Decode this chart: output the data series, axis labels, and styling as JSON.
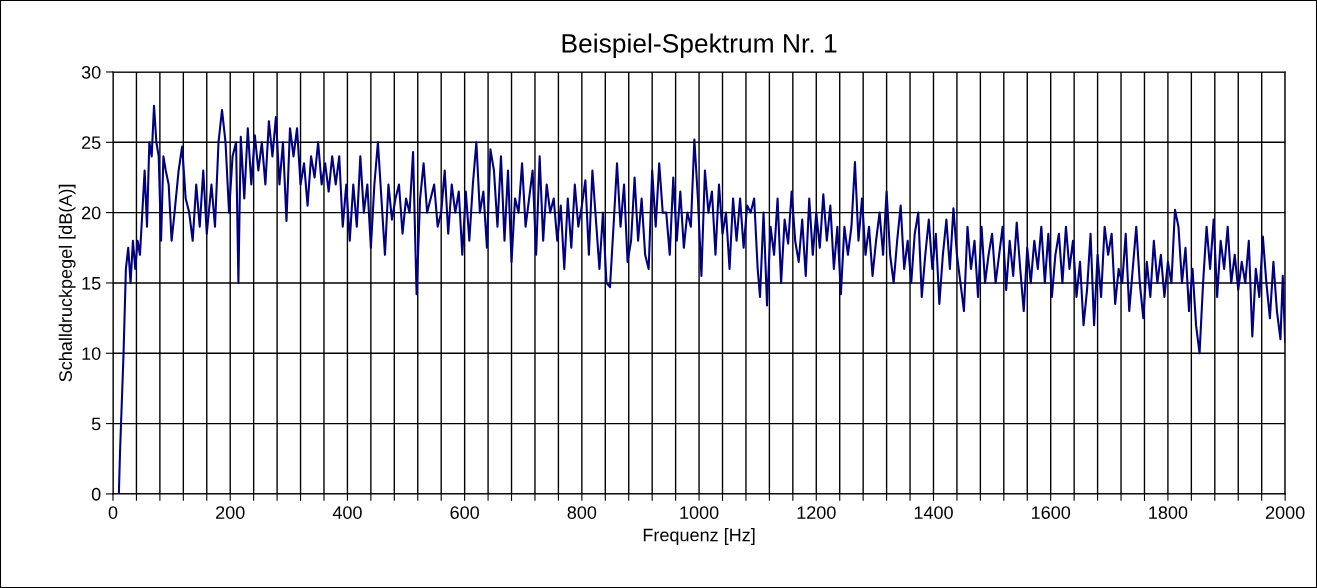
{
  "chart_data": {
    "type": "line",
    "title": "Beispiel-Spektrum Nr. 1",
    "xlabel": "Frequenz [Hz]",
    "ylabel": "Schalldruckpegel [dB(A)]",
    "xlim": [
      0,
      2000
    ],
    "ylim": [
      0,
      30
    ],
    "yticks": [
      0,
      5,
      10,
      15,
      20,
      25,
      30
    ],
    "xticks": [
      0,
      {
        "value": 40,
        "label": null
      },
      {
        "value": 80,
        "label": null
      },
      {
        "value": 120,
        "label": null
      },
      {
        "value": 160,
        "label": null
      },
      200,
      {
        "value": 240,
        "label": null
      },
      {
        "value": 280,
        "label": null
      },
      {
        "value": 320,
        "label": null
      },
      {
        "value": 360,
        "label": null
      },
      400,
      {
        "value": 440,
        "label": null
      },
      {
        "value": 480,
        "label": null
      },
      {
        "value": 520,
        "label": null
      },
      {
        "value": 560,
        "label": null
      },
      600,
      {
        "value": 640,
        "label": null
      },
      {
        "value": 680,
        "label": null
      },
      {
        "value": 720,
        "label": null
      },
      {
        "value": 760,
        "label": null
      },
      800,
      {
        "value": 840,
        "label": null
      },
      {
        "value": 880,
        "label": null
      },
      {
        "value": 920,
        "label": null
      },
      {
        "value": 960,
        "label": null
      },
      1000,
      {
        "value": 1040,
        "label": null
      },
      {
        "value": 1080,
        "label": null
      },
      {
        "value": 1120,
        "label": null
      },
      {
        "value": 1160,
        "label": null
      },
      1200,
      {
        "value": 1240,
        "label": null
      },
      {
        "value": 1280,
        "label": null
      },
      {
        "value": 1320,
        "label": null
      },
      {
        "value": 1360,
        "label": null
      },
      1400,
      {
        "value": 1440,
        "label": null
      },
      {
        "value": 1480,
        "label": null
      },
      {
        "value": 1520,
        "label": null
      },
      {
        "value": 1560,
        "label": null
      },
      1600,
      {
        "value": 1640,
        "label": null
      },
      {
        "value": 1680,
        "label": null
      },
      {
        "value": 1720,
        "label": null
      },
      {
        "value": 1760,
        "label": null
      },
      1800,
      {
        "value": 1840,
        "label": null
      },
      {
        "value": 1880,
        "label": null
      },
      {
        "value": 1920,
        "label": null
      },
      {
        "value": 1960,
        "label": null
      },
      2000
    ],
    "grid": true,
    "legend": false,
    "marker": "none",
    "line_style": "solid",
    "series": [
      {
        "color": "#000080",
        "x": [
          10,
          12,
          18,
          22,
          26,
          30,
          34,
          38,
          42,
          46,
          50,
          54,
          58,
          62,
          66,
          70,
          74,
          78,
          82,
          86,
          90,
          95,
          100,
          105,
          112,
          118,
          124,
          130,
          136,
          142,
          148,
          154,
          160,
          168,
          174,
          180,
          186,
          192,
          198,
          204,
          210,
          214,
          218,
          224,
          230,
          236,
          242,
          248,
          254,
          260,
          266,
          272,
          278,
          284,
          290,
          296,
          302,
          308,
          314,
          320,
          326,
          332,
          338,
          344,
          350,
          356,
          362,
          368,
          374,
          380,
          386,
          392,
          398,
          404,
          410,
          416,
          422,
          428,
          434,
          440,
          446,
          452,
          458,
          464,
          470,
          476,
          482,
          488,
          494,
          500,
          506,
          512,
          518,
          524,
          530,
          536,
          542,
          548,
          554,
          560,
          566,
          572,
          578,
          584,
          590,
          596,
          602,
          608,
          614,
          620,
          626,
          632,
          638,
          644,
          650,
          656,
          662,
          668,
          674,
          680,
          686,
          692,
          698,
          704,
          710,
          716,
          722,
          728,
          734,
          740,
          746,
          752,
          758,
          764,
          770,
          776,
          782,
          788,
          794,
          800,
          806,
          812,
          818,
          824,
          830,
          836,
          842,
          848,
          854,
          860,
          866,
          872,
          878,
          884,
          890,
          896,
          902,
          908,
          914,
          920,
          926,
          932,
          938,
          944,
          950,
          956,
          962,
          968,
          974,
          980,
          986,
          992,
          998,
          1004,
          1010,
          1016,
          1022,
          1028,
          1034,
          1040,
          1046,
          1052,
          1058,
          1064,
          1070,
          1076,
          1082,
          1088,
          1094,
          1100,
          1104,
          1110,
          1116,
          1122,
          1128,
          1134,
          1140,
          1146,
          1152,
          1158,
          1164,
          1170,
          1176,
          1182,
          1188,
          1194,
          1200,
          1206,
          1212,
          1218,
          1224,
          1230,
          1236,
          1242,
          1248,
          1254,
          1260,
          1266,
          1272,
          1278,
          1284,
          1290,
          1296,
          1302,
          1308,
          1314,
          1320,
          1326,
          1332,
          1338,
          1344,
          1350,
          1356,
          1362,
          1368,
          1374,
          1380,
          1386,
          1392,
          1398,
          1404,
          1410,
          1416,
          1422,
          1428,
          1434,
          1440,
          1446,
          1452,
          1458,
          1464,
          1470,
          1476,
          1482,
          1488,
          1494,
          1500,
          1506,
          1512,
          1518,
          1524,
          1530,
          1536,
          1542,
          1548,
          1554,
          1560,
          1566,
          1572,
          1578,
          1584,
          1590,
          1596,
          1602,
          1608,
          1614,
          1620,
          1626,
          1632,
          1638,
          1644,
          1650,
          1656,
          1662,
          1668,
          1674,
          1680,
          1686,
          1692,
          1698,
          1704,
          1710,
          1716,
          1722,
          1728,
          1734,
          1740,
          1746,
          1752,
          1758,
          1764,
          1770,
          1776,
          1782,
          1788,
          1794,
          1800,
          1806,
          1812,
          1818,
          1824,
          1830,
          1836,
          1842,
          1848,
          1854,
          1860,
          1866,
          1872,
          1878,
          1884,
          1890,
          1896,
          1902,
          1908,
          1914,
          1920,
          1926,
          1932,
          1938,
          1944,
          1950,
          1956,
          1962,
          1968,
          1974,
          1980,
          1986,
          1992,
          1996,
          2000
        ],
        "values": [
          0,
          3,
          10,
          16,
          17.5,
          15,
          18,
          16,
          18,
          17,
          20,
          23,
          19,
          25,
          24,
          27.6,
          25,
          24,
          18,
          24,
          23,
          22,
          18,
          20,
          23,
          24.7,
          21,
          20,
          18,
          22,
          19,
          23,
          18.5,
          22,
          19,
          25,
          27.3,
          25,
          20,
          24,
          25,
          15,
          25.4,
          21,
          26,
          22,
          25.5,
          23,
          25,
          22,
          26.5,
          24,
          26.8,
          22,
          25,
          19.4,
          26,
          24,
          26,
          22,
          23.5,
          20.5,
          24,
          22.5,
          25,
          22,
          23.5,
          21.5,
          24,
          22,
          24,
          19,
          22,
          18,
          22,
          19,
          24,
          20,
          22,
          17.5,
          22,
          25,
          21,
          17,
          22,
          19.5,
          21,
          22,
          18.5,
          21,
          20,
          24.3,
          14.2,
          21,
          23.5,
          20,
          21,
          22,
          19,
          20,
          23,
          18.5,
          22,
          20,
          21.5,
          17,
          21.5,
          18,
          22,
          25,
          20,
          21.5,
          17.5,
          24.5,
          23,
          19,
          24,
          18,
          23,
          16.5,
          21,
          20,
          23.5,
          19,
          21,
          23,
          17,
          24,
          18,
          22,
          20,
          21,
          18,
          20.5,
          16,
          21,
          17.5,
          22,
          19,
          20.5,
          22.3,
          17,
          23,
          19.5,
          16,
          20,
          15,
          14.7,
          19,
          23.5,
          19,
          22,
          16.5,
          18,
          22.5,
          18,
          21,
          17,
          16,
          23,
          19,
          23.5,
          20,
          20,
          17,
          22.5,
          18,
          21.5,
          17.5,
          20,
          19,
          25.2,
          21,
          15.5,
          23,
          20,
          21.5,
          17,
          22,
          18.5,
          20,
          16,
          21,
          18,
          21,
          17.5,
          20.5,
          20,
          21,
          16,
          14,
          20,
          13.4,
          19,
          17,
          21,
          15,
          19.5,
          17.8,
          21.5,
          18,
          16.5,
          19.5,
          15.5,
          21,
          17,
          20,
          17.5,
          21.3,
          18,
          20.5,
          16,
          19,
          14.2,
          19,
          17,
          19,
          23.6,
          18,
          21,
          17,
          19,
          15.5,
          18,
          20,
          17,
          21.5,
          17,
          15,
          18,
          20.5,
          16,
          18,
          15,
          18.5,
          20,
          14,
          17,
          19.5,
          16,
          18.5,
          13.5,
          17,
          19.5,
          16,
          20.3,
          17,
          15,
          13,
          19,
          16,
          18,
          14,
          19,
          15,
          17,
          18.5,
          15,
          17,
          19,
          14.5,
          18,
          15.5,
          19.3,
          16,
          13,
          17.5,
          15,
          18,
          16,
          19,
          15,
          18.5,
          14,
          17,
          18.5,
          15,
          19,
          16,
          18,
          14,
          16.5,
          12,
          14.5,
          18.5,
          12,
          17,
          14,
          19,
          17,
          18.5,
          13.5,
          16,
          15,
          18.5,
          13,
          16,
          19,
          15,
          12.5,
          16.5,
          14,
          18,
          15,
          17,
          14,
          16.5,
          15,
          20.2,
          19,
          15,
          17.5,
          13,
          16,
          12,
          10,
          15,
          19,
          16,
          19.5,
          14,
          18,
          16,
          19,
          15,
          17,
          14.5,
          16.5,
          15,
          18,
          11.2,
          16,
          14,
          18.3,
          15,
          12.5,
          16.5,
          13,
          11,
          15.5,
          10.8
        ]
      }
    ]
  }
}
